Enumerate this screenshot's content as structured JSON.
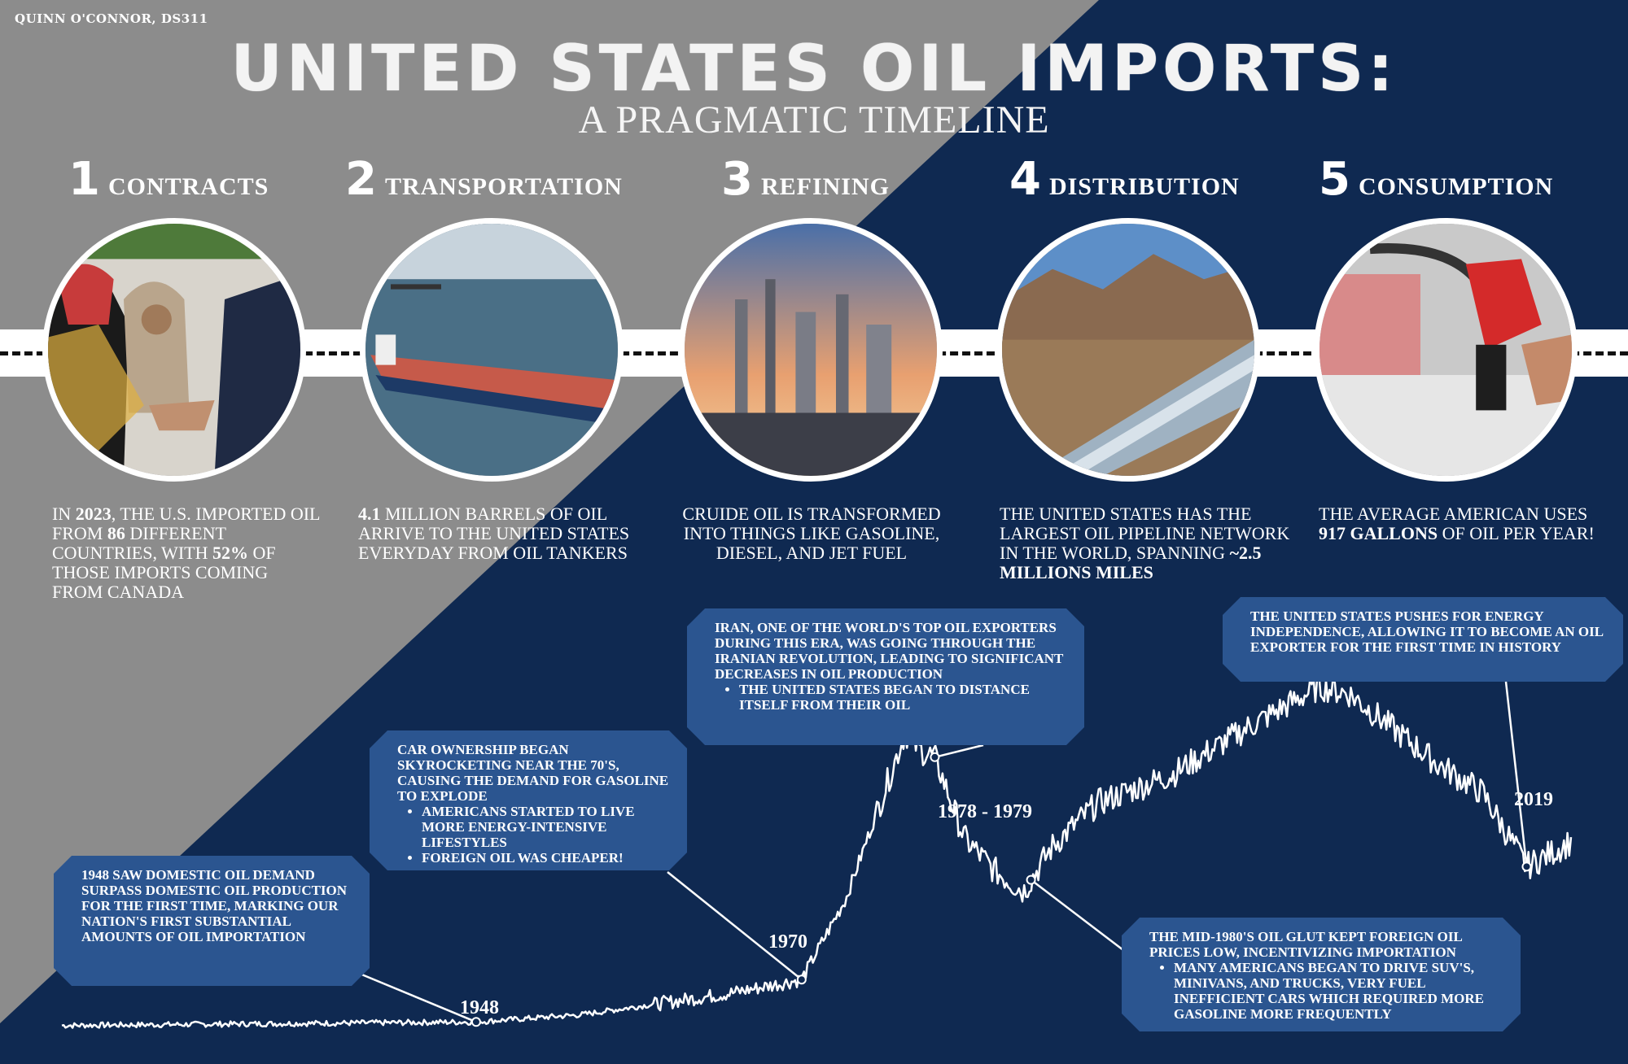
{
  "author": "QUINN O'CONNOR, DS311",
  "title": "UNITED STATES OIL IMPORTS:",
  "subtitle": "A PRAGMATIC TIMELINE",
  "stages": [
    {
      "number": "1",
      "label": "CONTRACTS",
      "photo": "leaders-handshake",
      "desc_parts": [
        "IN ",
        "2023",
        ", THE U.S. IMPORTED OIL FROM ",
        "86",
        " DIFFERENT COUNTRIES, WITH ",
        "52%",
        " OF THOSE IMPORTS COMING FROM CANADA"
      ]
    },
    {
      "number": "2",
      "label": "TRANSPORTATION",
      "photo": "oil-tanker",
      "desc_parts": [
        "4.1",
        " MILLION BARRELS OF OIL ARRIVE TO THE UNITED STATES EVERYDAY FROM OIL TANKERS"
      ]
    },
    {
      "number": "3",
      "label": "REFINING",
      "photo": "refinery",
      "desc_parts": [
        "CRUIDE OIL IS TRANSFORMED INTO THINGS LIKE GASOLINE, DIESEL, AND JET FUEL"
      ]
    },
    {
      "number": "4",
      "label": "DISTRIBUTION",
      "photo": "pipeline",
      "desc_parts": [
        "THE UNITED STATES HAS THE LARGEST OIL PIPELINE NETWORK IN THE WORLD, SPANNING ",
        "~2.5 MILLIONS MILES"
      ]
    },
    {
      "number": "5",
      "label": "CONSUMPTION",
      "photo": "gas-pump",
      "desc_parts": [
        "THE AVERAGE AMERICAN USES ",
        "917 GALLONS",
        " OF OIL PER YEAR!"
      ]
    }
  ],
  "callouts": {
    "c1948": {
      "text": "1948 SAW DOMESTIC OIL DEMAND SURPASS DOMESTIC OIL PRODUCTION FOR THE FIRST TIME, MARKING OUR NATION'S FIRST SUBSTANTIAL AMOUNTS OF OIL IMPORTATION",
      "bullets": []
    },
    "c1970": {
      "text": "CAR OWNERSHIP BEGAN SKYROCKETING NEAR THE 70'S, CAUSING THE DEMAND FOR GASOLINE TO EXPLODE",
      "bullets": [
        "AMERICANS STARTED TO LIVE MORE ENERGY-INTENSIVE LIFESTYLES",
        "FOREIGN OIL WAS CHEAPER!"
      ]
    },
    "c1979": {
      "text": "IRAN, ONE OF THE WORLD'S TOP OIL EXPORTERS DURING THIS ERA, WAS GOING THROUGH THE IRANIAN REVOLUTION, LEADING TO SIGNIFICANT DECREASES IN OIL PRODUCTION",
      "bullets": [
        "THE UNITED STATES BEGAN TO DISTANCE ITSELF FROM THEIR OIL"
      ]
    },
    "c1985": {
      "text": "THE MID-1980'S OIL GLUT KEPT FOREIGN OIL PRICES LOW, INCENTIVIZING IMPORTATION",
      "bullets": [
        "MANY AMERICANS BEGAN TO DRIVE SUV'S, MINIVANS, AND TRUCKS, VERY FUEL INEFFICIENT CARS WHICH REQUIRED MORE GASOLINE MORE FREQUENTLY"
      ]
    },
    "c2019": {
      "text": "THE UNITED STATES PUSHES FOR ENERGY INDEPENDENCE, ALLOWING IT TO BECOME AN OIL EXPORTER FOR THE FIRST TIME IN HISTORY",
      "bullets": []
    }
  },
  "year_labels": {
    "y1948": "1948",
    "y1970": "1970",
    "y1979": "1978 - 1979",
    "y2019": "2019"
  },
  "chart_data": {
    "type": "line",
    "title": "",
    "xlabel": "",
    "ylabel": "",
    "x": [
      1920,
      1948,
      1955,
      1960,
      1965,
      1970,
      1973,
      1977,
      1978,
      1979,
      1981,
      1983,
      1985,
      1987,
      1990,
      1995,
      2000,
      2005,
      2007,
      2010,
      2013,
      2016,
      2019,
      2022
    ],
    "values": [
      0.04,
      0.05,
      0.07,
      0.1,
      0.13,
      0.17,
      0.4,
      0.87,
      0.82,
      0.8,
      0.57,
      0.48,
      0.42,
      0.55,
      0.67,
      0.75,
      0.88,
      1.0,
      0.98,
      0.88,
      0.78,
      0.7,
      0.49,
      0.56
    ],
    "colors": {
      "line": "#ffffff",
      "background": "#0f2951",
      "gray": "#8c8c8c",
      "callout": "#2b5590"
    }
  }
}
